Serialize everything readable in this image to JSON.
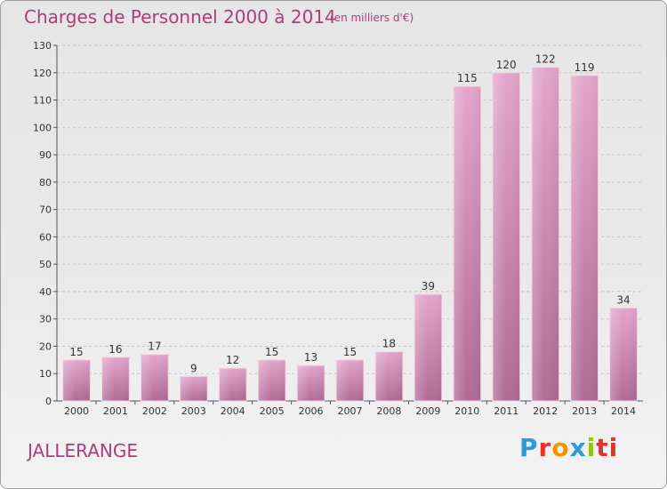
{
  "chart_data": {
    "type": "bar",
    "title": "Charges de Personnel 2000 à 2014",
    "subtitle": "(en milliers d'€)",
    "categories": [
      "2000",
      "2001",
      "2002",
      "2003",
      "2004",
      "2005",
      "2006",
      "2007",
      "2008",
      "2009",
      "2010",
      "2011",
      "2012",
      "2013",
      "2014"
    ],
    "values": [
      15,
      16,
      17,
      9,
      12,
      15,
      13,
      15,
      18,
      39,
      115,
      120,
      122,
      119,
      34
    ],
    "ylim": [
      0,
      130
    ],
    "yticks": [
      0,
      10,
      20,
      30,
      40,
      50,
      60,
      70,
      80,
      90,
      100,
      110,
      120,
      130
    ],
    "grid": true,
    "bar_color": "#c978a8"
  },
  "commune": "JALLERANGE",
  "logo": {
    "text": "Proxiti",
    "letters": [
      "P",
      "r",
      "o",
      "x",
      "i",
      "ti"
    ]
  }
}
